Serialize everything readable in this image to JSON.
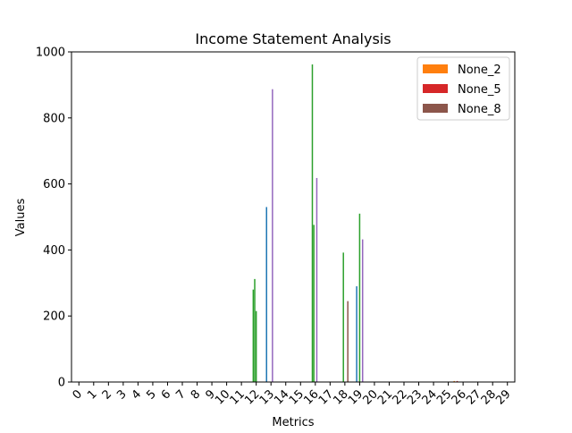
{
  "chart_data": {
    "type": "bar",
    "title": "Income Statement Analysis",
    "xlabel": "Metrics",
    "ylabel": "Values",
    "ylim": [
      0,
      1000
    ],
    "yticks": [
      0,
      200,
      400,
      600,
      800,
      1000
    ],
    "categories": [
      "0",
      "1",
      "2",
      "3",
      "4",
      "5",
      "6",
      "7",
      "8",
      "9",
      "10",
      "11",
      "12",
      "13",
      "14",
      "15",
      "16",
      "17",
      "18",
      "19",
      "20",
      "21",
      "22",
      "23",
      "24",
      "25",
      "26",
      "27",
      "28",
      "29"
    ],
    "legend_position": "top-right",
    "legend": [
      {
        "label": "None_2",
        "color": "#ff7f0e"
      },
      {
        "label": "None_5",
        "color": "#d62728"
      },
      {
        "label": "None_8",
        "color": "#8c564b"
      }
    ],
    "bars": [
      {
        "cat": 11.8,
        "value": 280,
        "color": "#2ca02c"
      },
      {
        "cat": 11.9,
        "value": 312,
        "color": "#2ca02c"
      },
      {
        "cat": 12.0,
        "value": 215,
        "color": "#2ca02c"
      },
      {
        "cat": 12.7,
        "value": 530,
        "color": "#1f77b4"
      },
      {
        "cat": 13.1,
        "value": 887,
        "color": "#9467bd"
      },
      {
        "cat": 15.8,
        "value": 962,
        "color": "#2ca02c"
      },
      {
        "cat": 15.9,
        "value": 476,
        "color": "#2ca02c"
      },
      {
        "cat": 16.1,
        "value": 618,
        "color": "#9467bd"
      },
      {
        "cat": 17.9,
        "value": 392,
        "color": "#2ca02c"
      },
      {
        "cat": 18.2,
        "value": 245,
        "color": "#8c564b"
      },
      {
        "cat": 18.8,
        "value": 290,
        "color": "#1f77b4"
      },
      {
        "cat": 19.0,
        "value": 510,
        "color": "#2ca02c"
      },
      {
        "cat": 19.2,
        "value": 432,
        "color": "#9467bd"
      },
      {
        "cat": 25.4,
        "value": 3,
        "color": "#ff7f0e"
      },
      {
        "cat": 25.6,
        "value": 3,
        "color": "#d62728"
      }
    ]
  }
}
